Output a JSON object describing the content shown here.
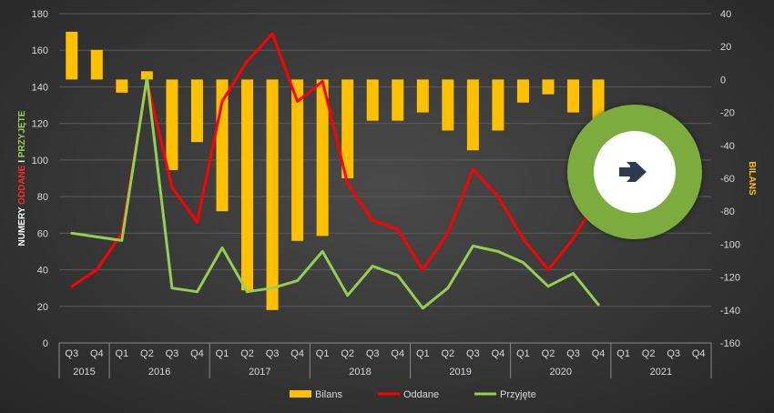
{
  "chart_data": {
    "type": "bar+line",
    "categories": [
      "Q3",
      "Q4",
      "Q1",
      "Q2",
      "Q3",
      "Q4",
      "Q1",
      "Q2",
      "Q3",
      "Q4",
      "Q1",
      "Q2",
      "Q3",
      "Q4",
      "Q1",
      "Q2",
      "Q3",
      "Q4",
      "Q1",
      "Q2",
      "Q3",
      "Q4",
      "Q1",
      "Q2",
      "Q3",
      "Q4"
    ],
    "years": [
      {
        "label": "2015",
        "span": 2
      },
      {
        "label": "2016",
        "span": 4
      },
      {
        "label": "2017",
        "span": 4
      },
      {
        "label": "2018",
        "span": 4
      },
      {
        "label": "2019",
        "span": 4
      },
      {
        "label": "2020",
        "span": 4
      },
      {
        "label": "2021",
        "span": 4
      }
    ],
    "left_axis": {
      "ylim": [
        0,
        180
      ],
      "ticks": [
        "0",
        "20",
        "40",
        "60",
        "80",
        "100",
        "120",
        "140",
        "160",
        "180"
      ]
    },
    "right_axis": {
      "ylim": [
        -160,
        40
      ],
      "ticks": [
        "-160",
        "-140",
        "-120",
        "-100",
        "-80",
        "-60",
        "-40",
        "-20",
        "0",
        "20",
        "40"
      ]
    },
    "left_title_parts": [
      {
        "text": "NUMERY ",
        "color": "#ffffff"
      },
      {
        "text": "ODDANE",
        "color": "#ff2a2a"
      },
      {
        "text": " I ",
        "color": "#ffffff"
      },
      {
        "text": "PRZYJĘTE",
        "color": "#8fd14f"
      }
    ],
    "right_title": "BILANS",
    "series": [
      {
        "name": "Bilans",
        "type": "bar",
        "axis": "right",
        "color": "#ffc000",
        "values": [
          29,
          18,
          -8,
          5,
          -55,
          -38,
          -80,
          -128,
          -140,
          -98,
          -95,
          -60,
          -25,
          -25,
          -20,
          -31,
          -43,
          -31,
          -14,
          -9,
          -20,
          -28,
          null,
          null,
          null,
          null
        ]
      },
      {
        "name": "Oddane",
        "type": "line",
        "axis": "left",
        "color": "#ff0000",
        "values": [
          31,
          40,
          60,
          143,
          85,
          66,
          132,
          154,
          169,
          132,
          143,
          87,
          67,
          62,
          40,
          60,
          95,
          80,
          57,
          40,
          57,
          80,
          null,
          null,
          null,
          null
        ]
      },
      {
        "name": "Przyjęte",
        "type": "line",
        "axis": "left",
        "color": "#92d050",
        "values": [
          60,
          58,
          56,
          145,
          30,
          28,
          52,
          28,
          30,
          34,
          50,
          26,
          42,
          37,
          19,
          30,
          53,
          50,
          44,
          31,
          38,
          21,
          null,
          null,
          null,
          null
        ]
      }
    ],
    "legend": [
      "Bilans",
      "Oddane",
      "Przyjęte"
    ],
    "legend_position": "bottom"
  },
  "overlay": {
    "icon": "arrow-right-icon",
    "ring_color": "#7cab3e",
    "arrow_color": "#2d3a50"
  }
}
